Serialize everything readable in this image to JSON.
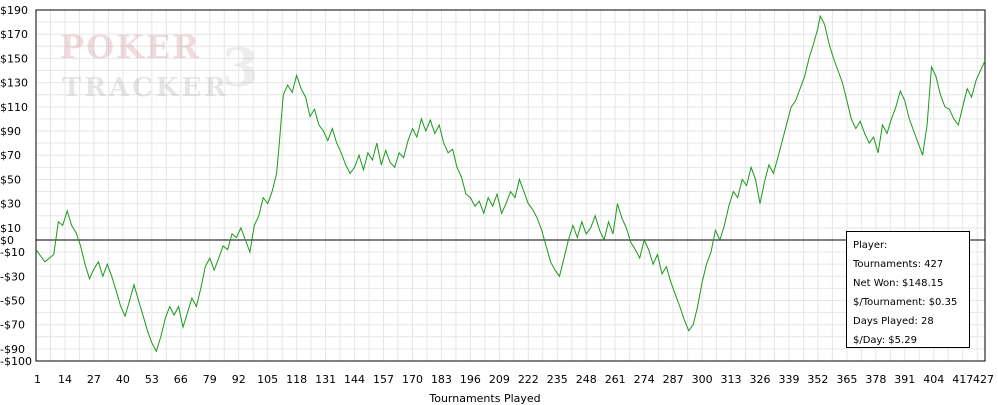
{
  "chart_data": {
    "type": "line",
    "title": "",
    "xlabel": "Tournaments Played",
    "ylabel": "",
    "xlim": [
      1,
      427
    ],
    "ylim": [
      -100,
      190
    ],
    "grid": true,
    "x_ticks": [
      1,
      14,
      27,
      40,
      53,
      66,
      79,
      92,
      105,
      118,
      131,
      144,
      157,
      170,
      183,
      196,
      209,
      222,
      235,
      248,
      261,
      274,
      287,
      300,
      313,
      326,
      339,
      352,
      365,
      378,
      391,
      404,
      417,
      427
    ],
    "y_ticks": [
      {
        "value": 190,
        "label": "$190"
      },
      {
        "value": 170,
        "label": "$170"
      },
      {
        "value": 150,
        "label": "$150"
      },
      {
        "value": 130,
        "label": "$130"
      },
      {
        "value": 110,
        "label": "$110"
      },
      {
        "value": 90,
        "label": "$90"
      },
      {
        "value": 70,
        "label": "$70"
      },
      {
        "value": 50,
        "label": "$50"
      },
      {
        "value": 30,
        "label": "$30"
      },
      {
        "value": 10,
        "label": "$10"
      },
      {
        "value": 0,
        "label": "$0"
      },
      {
        "value": -10,
        "label": "-$10"
      },
      {
        "value": -30,
        "label": "-$30"
      },
      {
        "value": -50,
        "label": "-$50"
      },
      {
        "value": -70,
        "label": "-$70"
      },
      {
        "value": -90,
        "label": "-$90"
      },
      {
        "value": -100,
        "label": "-$100"
      }
    ],
    "series": [
      {
        "color": "#1a9a1a",
        "points": [
          [
            1,
            -8
          ],
          [
            5,
            -18
          ],
          [
            9,
            -12
          ],
          [
            11,
            15
          ],
          [
            13,
            12
          ],
          [
            15,
            24
          ],
          [
            17,
            12
          ],
          [
            19,
            6
          ],
          [
            21,
            -5
          ],
          [
            23,
            -20
          ],
          [
            25,
            -32
          ],
          [
            27,
            -24
          ],
          [
            29,
            -18
          ],
          [
            31,
            -30
          ],
          [
            33,
            -20
          ],
          [
            35,
            -30
          ],
          [
            37,
            -42
          ],
          [
            39,
            -55
          ],
          [
            41,
            -63
          ],
          [
            43,
            -50
          ],
          [
            45,
            -37
          ],
          [
            47,
            -50
          ],
          [
            49,
            -62
          ],
          [
            51,
            -75
          ],
          [
            53,
            -85
          ],
          [
            55,
            -92
          ],
          [
            57,
            -80
          ],
          [
            59,
            -65
          ],
          [
            61,
            -55
          ],
          [
            63,
            -62
          ],
          [
            65,
            -55
          ],
          [
            67,
            -72
          ],
          [
            69,
            -60
          ],
          [
            71,
            -48
          ],
          [
            73,
            -55
          ],
          [
            75,
            -40
          ],
          [
            77,
            -22
          ],
          [
            79,
            -15
          ],
          [
            81,
            -25
          ],
          [
            83,
            -15
          ],
          [
            85,
            -5
          ],
          [
            87,
            -8
          ],
          [
            89,
            5
          ],
          [
            91,
            2
          ],
          [
            93,
            10
          ],
          [
            95,
            0
          ],
          [
            97,
            -10
          ],
          [
            99,
            12
          ],
          [
            101,
            20
          ],
          [
            103,
            35
          ],
          [
            105,
            30
          ],
          [
            107,
            40
          ],
          [
            109,
            55
          ],
          [
            110,
            75
          ],
          [
            112,
            120
          ],
          [
            114,
            128
          ],
          [
            116,
            122
          ],
          [
            118,
            136
          ],
          [
            120,
            125
          ],
          [
            122,
            118
          ],
          [
            124,
            102
          ],
          [
            126,
            108
          ],
          [
            128,
            95
          ],
          [
            130,
            90
          ],
          [
            132,
            82
          ],
          [
            134,
            92
          ],
          [
            136,
            80
          ],
          [
            138,
            72
          ],
          [
            140,
            62
          ],
          [
            142,
            55
          ],
          [
            144,
            60
          ],
          [
            146,
            70
          ],
          [
            148,
            58
          ],
          [
            150,
            72
          ],
          [
            152,
            66
          ],
          [
            154,
            80
          ],
          [
            156,
            62
          ],
          [
            158,
            74
          ],
          [
            160,
            64
          ],
          [
            162,
            60
          ],
          [
            164,
            72
          ],
          [
            166,
            68
          ],
          [
            168,
            82
          ],
          [
            170,
            92
          ],
          [
            172,
            85
          ],
          [
            174,
            100
          ],
          [
            176,
            90
          ],
          [
            178,
            99
          ],
          [
            180,
            88
          ],
          [
            182,
            95
          ],
          [
            184,
            80
          ],
          [
            186,
            72
          ],
          [
            188,
            75
          ],
          [
            190,
            60
          ],
          [
            192,
            52
          ],
          [
            194,
            38
          ],
          [
            196,
            35
          ],
          [
            198,
            28
          ],
          [
            200,
            32
          ],
          [
            202,
            22
          ],
          [
            204,
            35
          ],
          [
            206,
            28
          ],
          [
            208,
            38
          ],
          [
            210,
            22
          ],
          [
            212,
            30
          ],
          [
            214,
            40
          ],
          [
            216,
            35
          ],
          [
            218,
            50
          ],
          [
            220,
            40
          ],
          [
            222,
            30
          ],
          [
            224,
            25
          ],
          [
            226,
            18
          ],
          [
            228,
            8
          ],
          [
            230,
            -5
          ],
          [
            232,
            -18
          ],
          [
            234,
            -25
          ],
          [
            236,
            -30
          ],
          [
            238,
            -15
          ],
          [
            240,
            0
          ],
          [
            242,
            12
          ],
          [
            244,
            2
          ],
          [
            246,
            15
          ],
          [
            248,
            5
          ],
          [
            250,
            10
          ],
          [
            252,
            20
          ],
          [
            254,
            8
          ],
          [
            256,
            0
          ],
          [
            258,
            15
          ],
          [
            260,
            5
          ],
          [
            262,
            30
          ],
          [
            264,
            18
          ],
          [
            266,
            10
          ],
          [
            268,
            -2
          ],
          [
            270,
            -8
          ],
          [
            272,
            -15
          ],
          [
            274,
            0
          ],
          [
            276,
            -8
          ],
          [
            278,
            -20
          ],
          [
            280,
            -12
          ],
          [
            282,
            -28
          ],
          [
            284,
            -22
          ],
          [
            286,
            -35
          ],
          [
            288,
            -45
          ],
          [
            290,
            -55
          ],
          [
            292,
            -66
          ],
          [
            294,
            -75
          ],
          [
            296,
            -70
          ],
          [
            298,
            -55
          ],
          [
            300,
            -35
          ],
          [
            302,
            -20
          ],
          [
            304,
            -10
          ],
          [
            306,
            8
          ],
          [
            308,
            0
          ],
          [
            310,
            12
          ],
          [
            312,
            28
          ],
          [
            314,
            40
          ],
          [
            316,
            35
          ],
          [
            318,
            50
          ],
          [
            320,
            45
          ],
          [
            322,
            60
          ],
          [
            324,
            50
          ],
          [
            326,
            30
          ],
          [
            328,
            48
          ],
          [
            330,
            62
          ],
          [
            332,
            55
          ],
          [
            334,
            68
          ],
          [
            336,
            82
          ],
          [
            338,
            96
          ],
          [
            340,
            110
          ],
          [
            342,
            115
          ],
          [
            344,
            125
          ],
          [
            346,
            135
          ],
          [
            348,
            150
          ],
          [
            350,
            162
          ],
          [
            352,
            175
          ],
          [
            353,
            185
          ],
          [
            355,
            178
          ],
          [
            357,
            162
          ],
          [
            359,
            150
          ],
          [
            361,
            140
          ],
          [
            363,
            130
          ],
          [
            365,
            115
          ],
          [
            367,
            100
          ],
          [
            369,
            92
          ],
          [
            371,
            98
          ],
          [
            373,
            88
          ],
          [
            375,
            80
          ],
          [
            377,
            85
          ],
          [
            379,
            72
          ],
          [
            381,
            95
          ],
          [
            383,
            88
          ],
          [
            385,
            100
          ],
          [
            387,
            110
          ],
          [
            389,
            123
          ],
          [
            391,
            115
          ],
          [
            393,
            100
          ],
          [
            395,
            90
          ],
          [
            397,
            80
          ],
          [
            399,
            70
          ],
          [
            401,
            95
          ],
          [
            403,
            143
          ],
          [
            405,
            135
          ],
          [
            407,
            120
          ],
          [
            409,
            110
          ],
          [
            411,
            108
          ],
          [
            413,
            100
          ],
          [
            415,
            95
          ],
          [
            417,
            110
          ],
          [
            419,
            125
          ],
          [
            421,
            118
          ],
          [
            423,
            132
          ],
          [
            425,
            140
          ],
          [
            427,
            148
          ]
        ]
      }
    ]
  },
  "logo": {
    "line1": "POKER",
    "line2": "TRACKER",
    "mark": "3"
  },
  "info": {
    "player": "Player:",
    "tournaments": "Tournaments: 427",
    "net_won": "Net Won: $148.15",
    "per_tournament": "$/Tournament: $0.35",
    "days_played": "Days Played: 28",
    "per_day": "$/Day: $5.29"
  }
}
